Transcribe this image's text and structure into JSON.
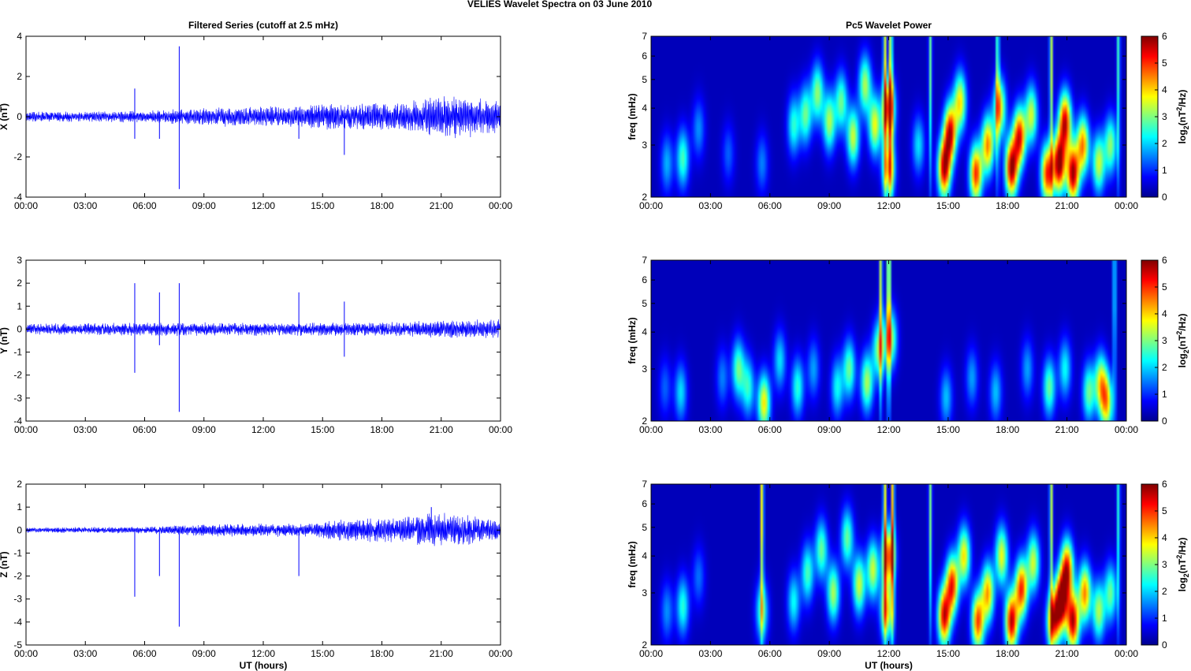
{
  "suptitle": "VELIES Wavelet Spectra on 03 June       2010",
  "chart_data": [
    {
      "type": "line",
      "title": "Filtered Series (cutoff at 2.5 mHz)",
      "ylabel": "X (nT)",
      "xlabel": "",
      "xlim": [
        0,
        24
      ],
      "ylim": [
        -4,
        4
      ],
      "yticks": [
        "-4",
        "-2",
        "0",
        "2",
        "4"
      ],
      "xticks": [
        "00:00",
        "03:00",
        "06:00",
        "09:00",
        "12:00",
        "15:00",
        "18:00",
        "21:00",
        "00:00"
      ],
      "color": "#0000ff",
      "noise_envelope": [
        [
          0,
          0.25
        ],
        [
          6,
          0.3
        ],
        [
          10,
          0.5
        ],
        [
          14,
          0.55
        ],
        [
          16,
          0.75
        ],
        [
          19,
          0.7
        ],
        [
          20.5,
          1.0
        ],
        [
          22,
          1.1
        ],
        [
          24,
          0.8
        ]
      ],
      "spikes": [
        [
          5.5,
          1.4
        ],
        [
          5.5,
          -1.1
        ],
        [
          6.75,
          -1.1
        ],
        [
          7.75,
          3.5
        ],
        [
          7.75,
          -3.6
        ],
        [
          13.8,
          -1.1
        ],
        [
          16.1,
          -1.9
        ],
        [
          24,
          1.1
        ]
      ]
    },
    {
      "type": "line",
      "title": "",
      "ylabel": "Y (nT)",
      "xlabel": "",
      "xlim": [
        0,
        24
      ],
      "ylim": [
        -4,
        3
      ],
      "yticks": [
        "-4",
        "-3",
        "-2",
        "-1",
        "0",
        "1",
        "2",
        "3"
      ],
      "xticks": [
        "00:00",
        "03:00",
        "06:00",
        "09:00",
        "12:00",
        "15:00",
        "18:00",
        "21:00",
        "00:00"
      ],
      "color": "#0000ff",
      "noise_envelope": [
        [
          0,
          0.25
        ],
        [
          6,
          0.3
        ],
        [
          12,
          0.3
        ],
        [
          18,
          0.3
        ],
        [
          21,
          0.4
        ],
        [
          24,
          0.45
        ]
      ],
      "spikes": [
        [
          5.5,
          2.0
        ],
        [
          5.5,
          -1.9
        ],
        [
          6.75,
          1.6
        ],
        [
          6.75,
          -0.7
        ],
        [
          7.75,
          2.0
        ],
        [
          7.75,
          -3.6
        ],
        [
          13.8,
          1.6
        ],
        [
          16.1,
          1.2
        ],
        [
          16.1,
          -1.2
        ],
        [
          24,
          -1.3
        ]
      ]
    },
    {
      "type": "line",
      "title": "",
      "ylabel": "Z (nT)",
      "xlabel": "UT (hours)",
      "xlim": [
        0,
        24
      ],
      "ylim": [
        -5,
        2
      ],
      "yticks": [
        "-5",
        "-4",
        "-3",
        "-2",
        "-1",
        "0",
        "1",
        "2"
      ],
      "xticks": [
        "00:00",
        "03:00",
        "06:00",
        "09:00",
        "12:00",
        "15:00",
        "18:00",
        "21:00",
        "00:00"
      ],
      "color": "#0000ff",
      "noise_envelope": [
        [
          0,
          0.12
        ],
        [
          6,
          0.15
        ],
        [
          10,
          0.3
        ],
        [
          14,
          0.3
        ],
        [
          16,
          0.5
        ],
        [
          19,
          0.55
        ],
        [
          20.5,
          0.8
        ],
        [
          22,
          0.7
        ],
        [
          24,
          0.4
        ]
      ],
      "spikes": [
        [
          5.5,
          -2.9
        ],
        [
          6.75,
          -2.0
        ],
        [
          7.75,
          -4.2
        ],
        [
          13.8,
          -2.0
        ],
        [
          20.5,
          1.0
        ],
        [
          24,
          1.1
        ]
      ]
    },
    {
      "type": "heatmap",
      "title": "Pc5 Wavelet Power",
      "ylabel": "freq (mHz)",
      "xlabel": "",
      "yscale": "log",
      "xlim": [
        0,
        24
      ],
      "ylim": [
        2,
        7
      ],
      "yticks": [
        "2",
        "3",
        "4",
        "5",
        "6",
        "7"
      ],
      "xticks": [
        "00:00",
        "03:00",
        "06:00",
        "09:00",
        "12:00",
        "15:00",
        "18:00",
        "21:00",
        "00:00"
      ],
      "colorbar": {
        "label": "log2(nT^2/Hz)",
        "range": [
          0,
          6
        ],
        "ticks": [
          "0",
          "1",
          "2",
          "3",
          "4",
          "5",
          "6"
        ]
      },
      "blobs": [
        [
          0.8,
          2.6,
          1.5
        ],
        [
          1.6,
          2.7,
          2.4
        ],
        [
          2.4,
          3.4,
          1.3
        ],
        [
          3.9,
          2.8,
          1.0
        ],
        [
          5.6,
          2.6,
          1.2
        ],
        [
          7.2,
          3.5,
          2.2
        ],
        [
          7.8,
          3.8,
          2.6
        ],
        [
          8.4,
          4.5,
          2.8
        ],
        [
          9.0,
          3.6,
          3.0
        ],
        [
          9.6,
          4.2,
          2.6
        ],
        [
          10.2,
          3.2,
          3.2
        ],
        [
          10.8,
          4.8,
          3.0
        ],
        [
          11.3,
          3.5,
          3.4
        ],
        [
          12.0,
          4.0,
          4.6
        ],
        [
          12.0,
          2.5,
          3.8
        ],
        [
          13.5,
          3.0,
          1.8
        ],
        [
          14.8,
          2.5,
          5.4
        ],
        [
          15.1,
          3.3,
          5.2
        ],
        [
          15.6,
          4.2,
          3.6
        ],
        [
          16.4,
          2.4,
          4.8
        ],
        [
          17.0,
          3.0,
          4.2
        ],
        [
          17.6,
          4.0,
          3.6
        ],
        [
          18.2,
          2.5,
          5.6
        ],
        [
          18.6,
          3.2,
          5.0
        ],
        [
          19.2,
          3.8,
          3.2
        ],
        [
          20.0,
          2.4,
          4.8
        ],
        [
          20.6,
          2.6,
          5.8
        ],
        [
          20.9,
          3.6,
          5.2
        ],
        [
          21.3,
          2.4,
          5.6
        ],
        [
          21.8,
          3.0,
          4.2
        ],
        [
          22.6,
          2.6,
          3.2
        ],
        [
          23.2,
          3.0,
          2.8
        ]
      ],
      "filaments": [
        [
          11.8,
          4.8
        ],
        [
          12.1,
          5.4
        ],
        [
          14.1,
          3.6
        ],
        [
          17.5,
          3.8
        ],
        [
          20.2,
          4.6
        ],
        [
          23.6,
          3.4
        ]
      ]
    },
    {
      "type": "heatmap",
      "title": "",
      "ylabel": "freq (mHz)",
      "xlabel": "",
      "yscale": "log",
      "xlim": [
        0,
        24
      ],
      "ylim": [
        2,
        7
      ],
      "yticks": [
        "2",
        "3",
        "4",
        "5",
        "6",
        "7"
      ],
      "xticks": [
        "00:00",
        "03:00",
        "06:00",
        "09:00",
        "12:00",
        "15:00",
        "18:00",
        "21:00",
        "00:00"
      ],
      "colorbar": {
        "label": "log2(nT^2/Hz)",
        "range": [
          0,
          6
        ],
        "ticks": [
          "0",
          "1",
          "2",
          "3",
          "4",
          "5",
          "6"
        ]
      },
      "blobs": [
        [
          0.7,
          2.6,
          1.0
        ],
        [
          1.5,
          2.5,
          1.8
        ],
        [
          3.6,
          2.8,
          1.2
        ],
        [
          4.4,
          3.0,
          2.6
        ],
        [
          4.9,
          2.6,
          2.2
        ],
        [
          5.7,
          2.3,
          3.6
        ],
        [
          6.5,
          3.2,
          1.8
        ],
        [
          7.4,
          2.6,
          2.2
        ],
        [
          8.2,
          3.0,
          1.4
        ],
        [
          9.4,
          2.6,
          2.0
        ],
        [
          10.0,
          3.0,
          2.6
        ],
        [
          10.9,
          2.7,
          3.0
        ],
        [
          11.5,
          3.5,
          2.8
        ],
        [
          12.1,
          3.8,
          3.0
        ],
        [
          14.9,
          2.4,
          1.6
        ],
        [
          16.2,
          2.8,
          1.4
        ],
        [
          17.4,
          2.5,
          1.6
        ],
        [
          19.0,
          3.0,
          1.4
        ],
        [
          20.1,
          2.6,
          2.6
        ],
        [
          20.9,
          3.0,
          2.0
        ],
        [
          22.1,
          2.5,
          2.6
        ],
        [
          22.7,
          2.7,
          3.2
        ],
        [
          23.0,
          2.3,
          3.6
        ]
      ],
      "filaments": [
        [
          11.6,
          4.6
        ],
        [
          12.0,
          6.0
        ],
        [
          23.4,
          3.0
        ]
      ]
    },
    {
      "type": "heatmap",
      "title": "",
      "ylabel": "freq (mHz)",
      "xlabel": "UT (hours)",
      "yscale": "log",
      "xlim": [
        0,
        24
      ],
      "ylim": [
        2,
        7
      ],
      "yticks": [
        "2",
        "3",
        "4",
        "5",
        "6",
        "7"
      ],
      "xticks": [
        "00:00",
        "03:00",
        "06:00",
        "09:00",
        "12:00",
        "15:00",
        "18:00",
        "21:00",
        "00:00"
      ],
      "colorbar": {
        "label": "log2(nT^2/Hz)",
        "range": [
          0,
          6
        ],
        "ticks": [
          "0",
          "1",
          "2",
          "3",
          "4",
          "5",
          "6"
        ]
      },
      "blobs": [
        [
          0.8,
          2.6,
          1.3
        ],
        [
          1.6,
          2.7,
          2.2
        ],
        [
          2.4,
          3.4,
          1.1
        ],
        [
          5.6,
          2.6,
          2.4
        ],
        [
          7.2,
          2.8,
          2.0
        ],
        [
          7.9,
          3.5,
          2.4
        ],
        [
          8.6,
          4.2,
          2.6
        ],
        [
          9.2,
          3.0,
          3.0
        ],
        [
          9.9,
          4.6,
          2.6
        ],
        [
          10.5,
          3.2,
          3.2
        ],
        [
          11.2,
          3.6,
          3.2
        ],
        [
          12.0,
          4.0,
          4.4
        ],
        [
          11.9,
          2.6,
          3.6
        ],
        [
          14.8,
          2.5,
          5.2
        ],
        [
          15.2,
          3.2,
          4.8
        ],
        [
          15.8,
          4.0,
          3.6
        ],
        [
          16.5,
          2.4,
          4.6
        ],
        [
          17.0,
          3.0,
          4.0
        ],
        [
          17.7,
          4.0,
          3.4
        ],
        [
          18.2,
          2.4,
          5.4
        ],
        [
          18.7,
          3.1,
          4.8
        ],
        [
          19.3,
          3.8,
          3.2
        ],
        [
          20.3,
          2.4,
          4.6
        ],
        [
          20.7,
          2.8,
          5.8
        ],
        [
          21.0,
          3.6,
          5.0
        ],
        [
          21.3,
          2.4,
          5.4
        ],
        [
          21.9,
          3.0,
          4.2
        ],
        [
          22.6,
          2.6,
          3.0
        ],
        [
          23.2,
          3.0,
          2.6
        ]
      ],
      "filaments": [
        [
          5.6,
          5.2
        ],
        [
          11.8,
          5.0
        ],
        [
          12.2,
          5.6
        ],
        [
          14.1,
          3.8
        ],
        [
          20.2,
          4.6
        ],
        [
          23.6,
          3.2
        ]
      ]
    }
  ]
}
